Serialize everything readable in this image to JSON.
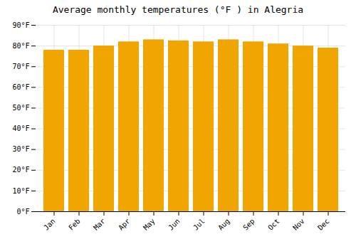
{
  "chart_data": {
    "type": "bar",
    "title": "Average monthly temperatures (°F ) in Alegria",
    "categories": [
      "Jan",
      "Feb",
      "Mar",
      "Apr",
      "May",
      "Jun",
      "Jul",
      "Aug",
      "Sep",
      "Oct",
      "Nov",
      "Dec"
    ],
    "values": [
      78,
      78,
      80,
      82,
      83,
      82.5,
      82,
      83,
      82,
      81,
      80,
      79
    ],
    "color": "#F0A500",
    "ylim": [
      0,
      90
    ],
    "yticks": [
      {
        "value": 0,
        "label": "0°F"
      },
      {
        "value": 10,
        "label": "10°F"
      },
      {
        "value": 20,
        "label": "20°F"
      },
      {
        "value": 30,
        "label": "30°F"
      },
      {
        "value": 40,
        "label": "40°F"
      },
      {
        "value": 50,
        "label": "50°F"
      },
      {
        "value": 60,
        "label": "60°F"
      },
      {
        "value": 70,
        "label": "70°F"
      },
      {
        "value": 80,
        "label": "80°F"
      },
      {
        "value": 90,
        "label": "90°F"
      }
    ],
    "grid": true
  }
}
